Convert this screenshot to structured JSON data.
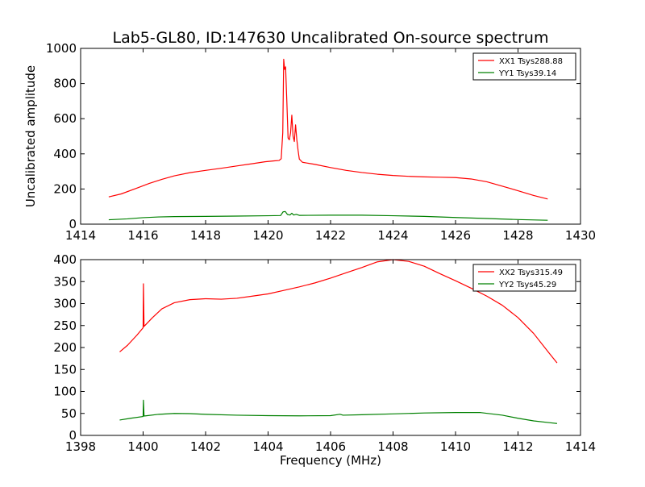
{
  "figure": {
    "title": "Lab5-GL80, ID:147630 Uncalibrated On-source spectrum"
  },
  "chart_data": [
    {
      "type": "line",
      "xlabel": "",
      "ylabel": "Uncalibrated amplitude",
      "xlim": [
        1414,
        1430
      ],
      "ylim": [
        0,
        1000
      ],
      "xticks": [
        1414,
        1416,
        1418,
        1420,
        1422,
        1424,
        1426,
        1428,
        1430
      ],
      "yticks": [
        0,
        200,
        400,
        600,
        800,
        1000
      ],
      "grid": false,
      "legend_position": "top-right",
      "series": [
        {
          "name": "XX1 Tsys288.88",
          "color": "#ff0000",
          "points": [
            [
              1414.9,
              155
            ],
            [
              1415.3,
              172
            ],
            [
              1415.8,
              205
            ],
            [
              1416.2,
              232
            ],
            [
              1416.6,
              255
            ],
            [
              1417.0,
              275
            ],
            [
              1417.5,
              293
            ],
            [
              1418.0,
              306
            ],
            [
              1418.5,
              318
            ],
            [
              1419.0,
              331
            ],
            [
              1419.5,
              344
            ],
            [
              1419.9,
              355
            ],
            [
              1420.2,
              360
            ],
            [
              1420.35,
              362
            ],
            [
              1420.42,
              372
            ],
            [
              1420.47,
              520
            ],
            [
              1420.5,
              938
            ],
            [
              1420.53,
              880
            ],
            [
              1420.56,
              895
            ],
            [
              1420.6,
              700
            ],
            [
              1420.64,
              490
            ],
            [
              1420.68,
              480
            ],
            [
              1420.72,
              520
            ],
            [
              1420.76,
              620
            ],
            [
              1420.8,
              500
            ],
            [
              1420.84,
              470
            ],
            [
              1420.88,
              565
            ],
            [
              1420.92,
              480
            ],
            [
              1420.96,
              420
            ],
            [
              1421.0,
              370
            ],
            [
              1421.1,
              352
            ],
            [
              1421.5,
              340
            ],
            [
              1422.0,
              322
            ],
            [
              1422.5,
              306
            ],
            [
              1423.0,
              294
            ],
            [
              1423.5,
              284
            ],
            [
              1424.0,
              277
            ],
            [
              1424.5,
              272
            ],
            [
              1425.0,
              269
            ],
            [
              1425.5,
              267
            ],
            [
              1426.0,
              265
            ],
            [
              1426.5,
              257
            ],
            [
              1427.0,
              241
            ],
            [
              1427.5,
              216
            ],
            [
              1428.0,
              190
            ],
            [
              1428.5,
              163
            ],
            [
              1428.95,
              143
            ]
          ]
        },
        {
          "name": "YY1 Tsys39.14",
          "color": "#008000",
          "points": [
            [
              1414.9,
              25
            ],
            [
              1415.5,
              30
            ],
            [
              1416.0,
              37
            ],
            [
              1416.5,
              41
            ],
            [
              1417.0,
              43
            ],
            [
              1418.0,
              44
            ],
            [
              1419.0,
              46
            ],
            [
              1420.0,
              48
            ],
            [
              1420.4,
              49
            ],
            [
              1420.48,
              70
            ],
            [
              1420.55,
              72
            ],
            [
              1420.62,
              55
            ],
            [
              1420.7,
              52
            ],
            [
              1420.76,
              62
            ],
            [
              1420.82,
              52
            ],
            [
              1420.9,
              56
            ],
            [
              1421.0,
              50
            ],
            [
              1422.0,
              51
            ],
            [
              1423.0,
              51
            ],
            [
              1424.0,
              48
            ],
            [
              1425.0,
              44
            ],
            [
              1426.0,
              38
            ],
            [
              1427.0,
              32
            ],
            [
              1428.0,
              26
            ],
            [
              1428.95,
              22
            ]
          ]
        }
      ]
    },
    {
      "type": "line",
      "xlabel": "Frequency (MHz)",
      "ylabel": "",
      "xlim": [
        1398,
        1414
      ],
      "ylim": [
        0,
        400
      ],
      "xticks": [
        1398,
        1400,
        1402,
        1404,
        1406,
        1408,
        1410,
        1412,
        1414
      ],
      "yticks": [
        0,
        50,
        100,
        150,
        200,
        250,
        300,
        350,
        400
      ],
      "grid": false,
      "legend_position": "top-right",
      "series": [
        {
          "name": "XX2 Tsys315.49",
          "color": "#ff0000",
          "points": [
            [
              1399.25,
              190
            ],
            [
              1399.5,
              205
            ],
            [
              1399.8,
              228
            ],
            [
              1400.0,
              245
            ],
            [
              1400.01,
              345
            ],
            [
              1400.03,
              248
            ],
            [
              1400.3,
              268
            ],
            [
              1400.6,
              288
            ],
            [
              1401.0,
              302
            ],
            [
              1401.5,
              309
            ],
            [
              1402.0,
              311
            ],
            [
              1402.5,
              310
            ],
            [
              1403.0,
              312
            ],
            [
              1403.5,
              317
            ],
            [
              1404.0,
              322
            ],
            [
              1404.5,
              330
            ],
            [
              1405.0,
              338
            ],
            [
              1405.5,
              347
            ],
            [
              1406.0,
              358
            ],
            [
              1406.5,
              370
            ],
            [
              1407.0,
              382
            ],
            [
              1407.5,
              395
            ],
            [
              1408.0,
              400
            ],
            [
              1408.5,
              396
            ],
            [
              1409.0,
              385
            ],
            [
              1409.5,
              368
            ],
            [
              1410.0,
              352
            ],
            [
              1410.5,
              335
            ],
            [
              1411.0,
              317
            ],
            [
              1411.5,
              296
            ],
            [
              1412.0,
              268
            ],
            [
              1412.5,
              232
            ],
            [
              1413.0,
              187
            ],
            [
              1413.25,
              165
            ]
          ]
        },
        {
          "name": "YY2 Tsys45.29",
          "color": "#008000",
          "points": [
            [
              1399.25,
              35
            ],
            [
              1399.6,
              39
            ],
            [
              1400.0,
              43
            ],
            [
              1400.01,
              80
            ],
            [
              1400.03,
              44
            ],
            [
              1400.5,
              48
            ],
            [
              1401.0,
              50
            ],
            [
              1401.5,
              49.5
            ],
            [
              1402.0,
              48
            ],
            [
              1403.0,
              46
            ],
            [
              1404.0,
              45
            ],
            [
              1405.0,
              44.5
            ],
            [
              1406.0,
              45
            ],
            [
              1406.3,
              48
            ],
            [
              1406.4,
              46
            ],
            [
              1407.0,
              47
            ],
            [
              1408.0,
              49
            ],
            [
              1409.0,
              51
            ],
            [
              1410.0,
              52
            ],
            [
              1410.8,
              52
            ],
            [
              1411.5,
              46
            ],
            [
              1412.0,
              39
            ],
            [
              1412.5,
              33
            ],
            [
              1413.0,
              29
            ],
            [
              1413.25,
              27
            ]
          ]
        }
      ]
    }
  ]
}
